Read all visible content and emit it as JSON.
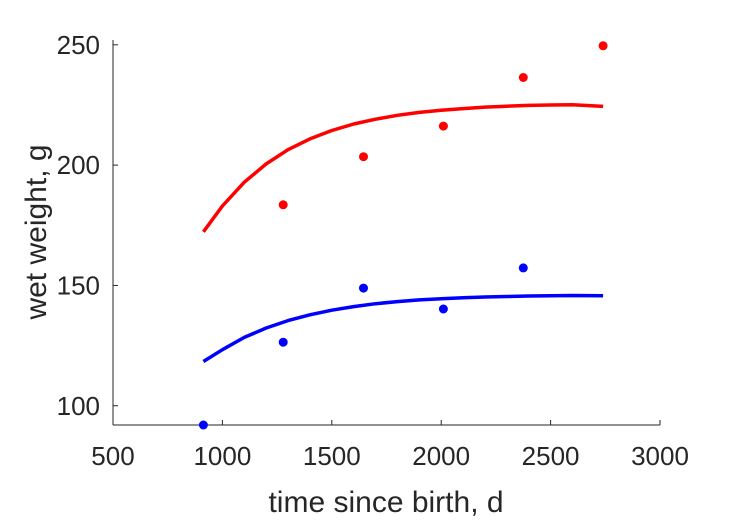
{
  "chart_data": {
    "type": "scatter",
    "title": "",
    "xlabel": "time since birth, d",
    "ylabel": "wet weight, g",
    "xlim": [
      500,
      3000
    ],
    "ylim": [
      92,
      252
    ],
    "x_ticks": [
      500,
      1000,
      1500,
      2000,
      2500,
      3000
    ],
    "y_ticks": [
      100,
      150,
      200,
      250
    ],
    "x_tick_labels": [
      "500",
      "1000",
      "1500",
      "2000",
      "2500",
      "3000"
    ],
    "y_tick_labels": [
      "100",
      "150",
      "200",
      "250"
    ],
    "grid": false,
    "legend": "none",
    "series": [
      {
        "kind": "points",
        "color": "#ff0000",
        "x": [
          1278,
          1645,
          2010,
          2375,
          2740
        ],
        "y": [
          183.5,
          203.5,
          216.2,
          236.4,
          249.6
        ]
      },
      {
        "kind": "points",
        "color": "#0000ff",
        "x": [
          913,
          1278,
          1645,
          2010,
          2375
        ],
        "y": [
          92.0,
          126.4,
          148.9,
          140.2,
          157.3
        ]
      },
      {
        "kind": "line",
        "color": "#ff0000",
        "x": [
          913,
          1000,
          1100,
          1200,
          1300,
          1400,
          1500,
          1600,
          1700,
          1800,
          1900,
          2000,
          2100,
          2200,
          2300,
          2400,
          2500,
          2600,
          2740
        ],
        "y": [
          172.3,
          183.0,
          192.9,
          200.5,
          206.4,
          210.9,
          214.4,
          217.1,
          219.1,
          220.7,
          221.9,
          222.8,
          223.5,
          224.1,
          224.5,
          224.8,
          225.0,
          225.1,
          224.4
        ]
      },
      {
        "kind": "line",
        "color": "#0000ff",
        "x": [
          913,
          1000,
          1100,
          1200,
          1300,
          1400,
          1500,
          1600,
          1700,
          1800,
          1900,
          2000,
          2100,
          2200,
          2300,
          2400,
          2500,
          2600,
          2740
        ],
        "y": [
          118.4,
          123.3,
          128.4,
          132.3,
          135.4,
          137.8,
          139.7,
          141.2,
          142.4,
          143.3,
          144.0,
          144.5,
          144.9,
          145.2,
          145.4,
          145.6,
          145.7,
          145.8,
          145.7
        ]
      }
    ]
  }
}
